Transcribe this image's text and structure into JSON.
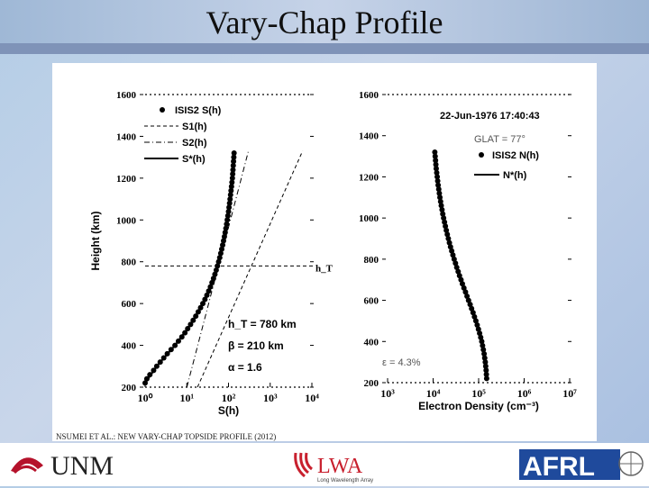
{
  "slide": {
    "title": "Vary-Chap Profile",
    "credit": "NSUMEI ET AL.: NEW VARY-CHAP TOPSIDE PROFILE (2012)",
    "logos": {
      "unm": "UNM",
      "lwa": "LWA",
      "lwa_sub": "Long Wavelength Array",
      "afrl": "AFRL"
    }
  },
  "chart_data": [
    {
      "type": "line",
      "xscale": "log",
      "xlim": [
        1,
        10000
      ],
      "ylim": [
        200,
        1600
      ],
      "xticks": [
        "10⁰",
        "10¹",
        "10²",
        "10³",
        "10⁴"
      ],
      "yticks": [
        "200",
        "400",
        "600",
        "800",
        "1000",
        "1200",
        "1400",
        "1600"
      ],
      "xlabel": "S(h)",
      "ylabel": "Height (km)",
      "legend": [
        "ISIS2 S(h)",
        "S1(h)",
        "S2(h)",
        "S*(h)"
      ],
      "annotations": {
        "hT_line": "h_T",
        "hT": "h_T = 780 km",
        "beta": "β = 210 km",
        "alpha": "α = 1.6"
      },
      "series": [
        {
          "name": "ISIS2 S(h)",
          "style": "dots",
          "h": [
            220,
            240,
            260,
            280,
            300,
            320,
            340,
            360,
            380,
            400,
            420,
            440,
            460,
            480,
            500,
            520,
            540,
            560,
            580,
            600,
            620,
            640,
            660,
            680,
            700,
            720,
            740,
            760,
            780,
            800,
            820,
            840,
            860,
            880,
            900,
            920,
            940,
            960,
            980,
            1000,
            1020,
            1040,
            1060,
            1080,
            1100,
            1120,
            1140,
            1160,
            1180,
            1200,
            1220,
            1240,
            1260,
            1280,
            1300,
            1320
          ],
          "s": [
            1.0,
            1.1,
            1.3,
            1.6,
            1.9,
            2.3,
            2.8,
            3.4,
            4.2,
            5.2,
            6.3,
            7.6,
            9.0,
            10.5,
            12.3,
            14.2,
            16.4,
            18.8,
            21.4,
            24.2,
            27.2,
            30.3,
            33.5,
            36.8,
            40.2,
            43.7,
            47.2,
            50.8,
            54.4,
            58.0,
            61.6,
            65.2,
            68.8,
            72.4,
            76.0,
            79.6,
            83.1,
            86.6,
            90.0,
            93.4,
            96.7,
            100,
            103,
            106,
            109,
            112,
            115,
            118,
            121,
            124,
            126,
            128,
            130,
            132,
            134,
            136
          ]
        },
        {
          "name": "S1(h)",
          "style": "dashed",
          "h": [
            200,
            1330
          ],
          "s": [
            18,
            6000
          ]
        },
        {
          "name": "S2(h)",
          "style": "dashdot",
          "h": [
            200,
            1330
          ],
          "s": [
            10,
            300
          ]
        },
        {
          "name": "S*(h)",
          "style": "solid",
          "h": [
            220,
            300,
            400,
            500,
            600,
            700,
            800,
            900,
            1000,
            1100,
            1200,
            1320
          ],
          "s": [
            1.0,
            1.9,
            5.2,
            12.3,
            24.2,
            40.2,
            58.0,
            76.0,
            93.4,
            109,
            124,
            136
          ]
        }
      ]
    },
    {
      "type": "line",
      "xscale": "log",
      "xlim": [
        1000,
        10000000
      ],
      "ylim": [
        200,
        1600
      ],
      "xticks": [
        "10³",
        "10⁴",
        "10⁵",
        "10⁶",
        "10⁷"
      ],
      "yticks": [
        "200",
        "400",
        "600",
        "800",
        "1000",
        "1200",
        "1400",
        "1600"
      ],
      "xlabel": "Electron Density (cm⁻³)",
      "legend": [
        "ISIS2 N(h)",
        "N*(h)"
      ],
      "annotations": {
        "date": "22-Jun-1976 17:40:43",
        "glat": "GLAT = 77°",
        "eps": "ε = 4.3%"
      },
      "series": [
        {
          "name": "ISIS2 N(h)",
          "style": "dots",
          "h": [
            220,
            240,
            260,
            280,
            300,
            320,
            340,
            360,
            380,
            400,
            420,
            440,
            460,
            480,
            500,
            520,
            540,
            560,
            580,
            600,
            620,
            640,
            660,
            680,
            700,
            720,
            740,
            760,
            780,
            800,
            820,
            840,
            860,
            880,
            900,
            920,
            940,
            960,
            980,
            1000,
            1020,
            1040,
            1060,
            1080,
            1100,
            1120,
            1140,
            1160,
            1180,
            1200,
            1220,
            1240,
            1260,
            1280,
            1300,
            1320
          ],
          "n": [
            150000,
            148000,
            146000,
            143000,
            140000,
            136000,
            132000,
            127000,
            122000,
            117000,
            111000,
            105000,
            99000,
            93000,
            87000,
            81000,
            75500,
            70000,
            65000,
            60000,
            55500,
            51500,
            47500,
            44000,
            41000,
            38000,
            35500,
            33000,
            31000,
            29000,
            27200,
            25600,
            24100,
            22800,
            21600,
            20500,
            19500,
            18600,
            17800,
            17000,
            16300,
            15700,
            15100,
            14600,
            14100,
            13700,
            13300,
            12900,
            12600,
            12300,
            12000,
            11700,
            11500,
            11300,
            11100,
            10900
          ]
        },
        {
          "name": "N*(h)",
          "style": "solid",
          "h": [
            220,
            300,
            400,
            500,
            600,
            700,
            800,
            900,
            1000,
            1100,
            1200,
            1320
          ],
          "n": [
            150000,
            140000,
            117000,
            87000,
            60000,
            41000,
            29000,
            21600,
            17000,
            14100,
            12300,
            10900
          ]
        }
      ]
    }
  ]
}
